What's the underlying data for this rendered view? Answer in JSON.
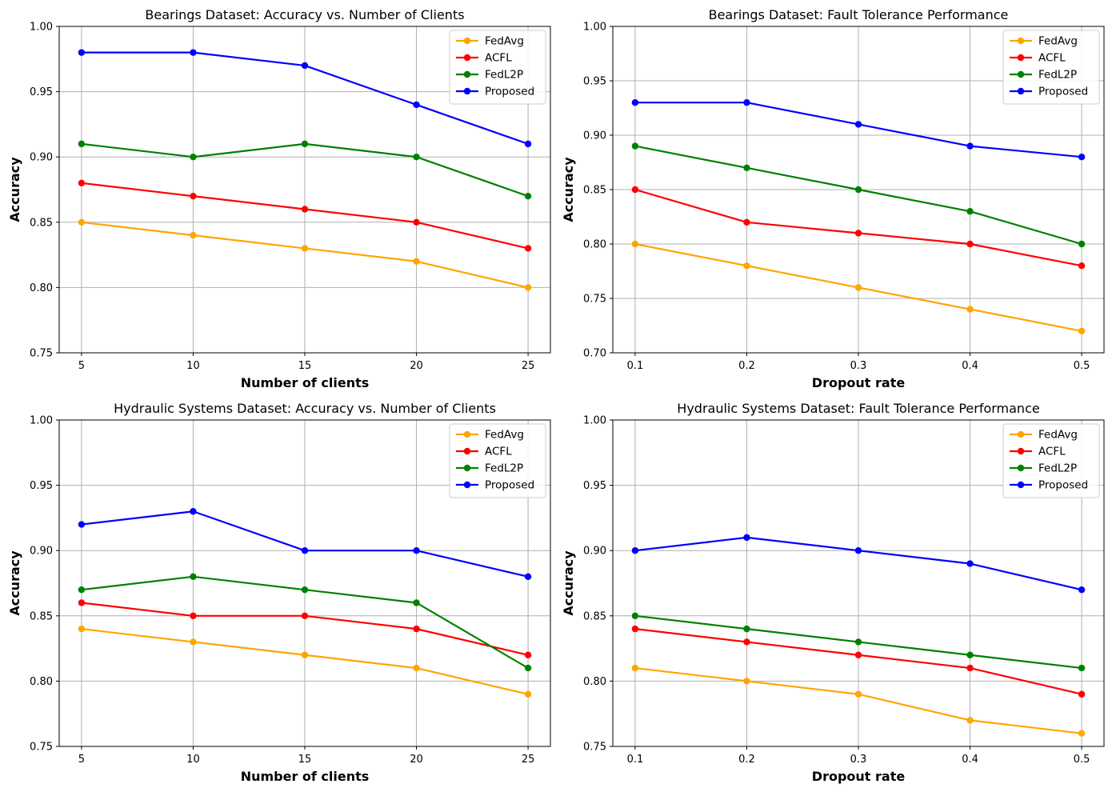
{
  "chart_data": [
    {
      "type": "line",
      "title": "Bearings Dataset: Accuracy vs. Number of Clients",
      "xlabel": "Number of clients",
      "ylabel": "Accuracy",
      "x": [
        5,
        10,
        15,
        20,
        25
      ],
      "x_tick_labels": [
        "5",
        "10",
        "15",
        "20",
        "25"
      ],
      "xlim": [
        4,
        26
      ],
      "ylim": [
        0.75,
        1.0
      ],
      "y_ticks": [
        0.75,
        0.8,
        0.85,
        0.9,
        0.95,
        1.0
      ],
      "y_tick_labels": [
        "0.75",
        "0.80",
        "0.85",
        "0.90",
        "0.95",
        "1.00"
      ],
      "grid": true,
      "legend_position": "top-right",
      "series": [
        {
          "name": "FedAvg",
          "color": "#ffa500",
          "values": [
            0.85,
            0.84,
            0.83,
            0.82,
            0.8
          ]
        },
        {
          "name": "ACFL",
          "color": "#ff0000",
          "values": [
            0.88,
            0.87,
            0.86,
            0.85,
            0.83
          ]
        },
        {
          "name": "FedL2P",
          "color": "#008000",
          "values": [
            0.91,
            0.9,
            0.91,
            0.9,
            0.87
          ]
        },
        {
          "name": "Proposed",
          "color": "#0000ff",
          "values": [
            0.98,
            0.98,
            0.97,
            0.94,
            0.91
          ]
        }
      ]
    },
    {
      "type": "line",
      "title": "Bearings Dataset: Fault Tolerance Performance",
      "xlabel": "Dropout rate",
      "ylabel": "Accuracy",
      "x": [
        0.1,
        0.2,
        0.3,
        0.4,
        0.5
      ],
      "x_tick_labels": [
        "0.1",
        "0.2",
        "0.3",
        "0.4",
        "0.5"
      ],
      "xlim": [
        0.08,
        0.52
      ],
      "ylim": [
        0.7,
        1.0
      ],
      "y_ticks": [
        0.7,
        0.75,
        0.8,
        0.85,
        0.9,
        0.95,
        1.0
      ],
      "y_tick_labels": [
        "0.70",
        "0.75",
        "0.80",
        "0.85",
        "0.90",
        "0.95",
        "1.00"
      ],
      "grid": true,
      "legend_position": "top-right",
      "series": [
        {
          "name": "FedAvg",
          "color": "#ffa500",
          "values": [
            0.8,
            0.78,
            0.76,
            0.74,
            0.72
          ]
        },
        {
          "name": "ACFL",
          "color": "#ff0000",
          "values": [
            0.85,
            0.82,
            0.81,
            0.8,
            0.78
          ]
        },
        {
          "name": "FedL2P",
          "color": "#008000",
          "values": [
            0.89,
            0.87,
            0.85,
            0.83,
            0.8
          ]
        },
        {
          "name": "Proposed",
          "color": "#0000ff",
          "values": [
            0.93,
            0.93,
            0.91,
            0.89,
            0.88
          ]
        }
      ]
    },
    {
      "type": "line",
      "title": "Hydraulic Systems Dataset: Accuracy vs. Number of Clients",
      "xlabel": "Number of clients",
      "ylabel": "Accuracy",
      "x": [
        5,
        10,
        15,
        20,
        25
      ],
      "x_tick_labels": [
        "5",
        "10",
        "15",
        "20",
        "25"
      ],
      "xlim": [
        4,
        26
      ],
      "ylim": [
        0.75,
        1.0
      ],
      "y_ticks": [
        0.75,
        0.8,
        0.85,
        0.9,
        0.95,
        1.0
      ],
      "y_tick_labels": [
        "0.75",
        "0.80",
        "0.85",
        "0.90",
        "0.95",
        "1.00"
      ],
      "grid": true,
      "legend_position": "top-right",
      "series": [
        {
          "name": "FedAvg",
          "color": "#ffa500",
          "values": [
            0.84,
            0.83,
            0.82,
            0.81,
            0.79
          ]
        },
        {
          "name": "ACFL",
          "color": "#ff0000",
          "values": [
            0.86,
            0.85,
            0.85,
            0.84,
            0.82
          ]
        },
        {
          "name": "FedL2P",
          "color": "#008000",
          "values": [
            0.87,
            0.88,
            0.87,
            0.86,
            0.81
          ]
        },
        {
          "name": "Proposed",
          "color": "#0000ff",
          "values": [
            0.92,
            0.93,
            0.9,
            0.9,
            0.88
          ]
        }
      ]
    },
    {
      "type": "line",
      "title": "Hydraulic Systems Dataset: Fault Tolerance Performance",
      "xlabel": "Dropout rate",
      "ylabel": "Accuracy",
      "x": [
        0.1,
        0.2,
        0.3,
        0.4,
        0.5
      ],
      "x_tick_labels": [
        "0.1",
        "0.2",
        "0.3",
        "0.4",
        "0.5"
      ],
      "xlim": [
        0.08,
        0.52
      ],
      "ylim": [
        0.75,
        1.0
      ],
      "y_ticks": [
        0.75,
        0.8,
        0.85,
        0.9,
        0.95,
        1.0
      ],
      "y_tick_labels": [
        "0.75",
        "0.80",
        "0.85",
        "0.90",
        "0.95",
        "1.00"
      ],
      "grid": true,
      "legend_position": "top-right",
      "series": [
        {
          "name": "FedAvg",
          "color": "#ffa500",
          "values": [
            0.81,
            0.8,
            0.79,
            0.77,
            0.76
          ]
        },
        {
          "name": "ACFL",
          "color": "#ff0000",
          "values": [
            0.84,
            0.83,
            0.82,
            0.81,
            0.79
          ]
        },
        {
          "name": "FedL2P",
          "color": "#008000",
          "values": [
            0.85,
            0.84,
            0.83,
            0.82,
            0.81
          ]
        },
        {
          "name": "Proposed",
          "color": "#0000ff",
          "values": [
            0.9,
            0.91,
            0.9,
            0.89,
            0.87
          ]
        }
      ]
    }
  ]
}
